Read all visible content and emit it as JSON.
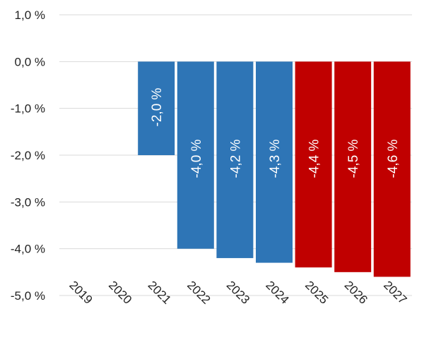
{
  "chart_data": {
    "type": "bar",
    "categories": [
      "2019",
      "2020",
      "2021",
      "2022",
      "2023",
      "2024",
      "2025",
      "2026",
      "2027"
    ],
    "values": [
      null,
      null,
      -2.0,
      -4.0,
      -4.2,
      -4.3,
      -4.4,
      -4.5,
      -4.6
    ],
    "data_labels": [
      "",
      "",
      "-2,0 %",
      "-4,0 %",
      "-4,2 %",
      "-4,3 %",
      "-4,4 %",
      "-4,5 %",
      "-4,6 %"
    ],
    "bar_colors": [
      "#2e75b6",
      "#2e75b6",
      "#2e75b6",
      "#2e75b6",
      "#2e75b6",
      "#2e75b6",
      "#c00000",
      "#c00000",
      "#c00000"
    ],
    "yticks": [
      1.0,
      0.0,
      -1.0,
      -2.0,
      -3.0,
      -4.0,
      -5.0
    ],
    "ytick_labels": [
      "1,0 %",
      "0,0 %",
      "-1,0 %",
      "-2,0 %",
      "-3,0 %",
      "-4,0 %",
      "-5,0 %"
    ],
    "ylim": [
      -5.0,
      1.0
    ],
    "grid": true,
    "legend": "none"
  }
}
